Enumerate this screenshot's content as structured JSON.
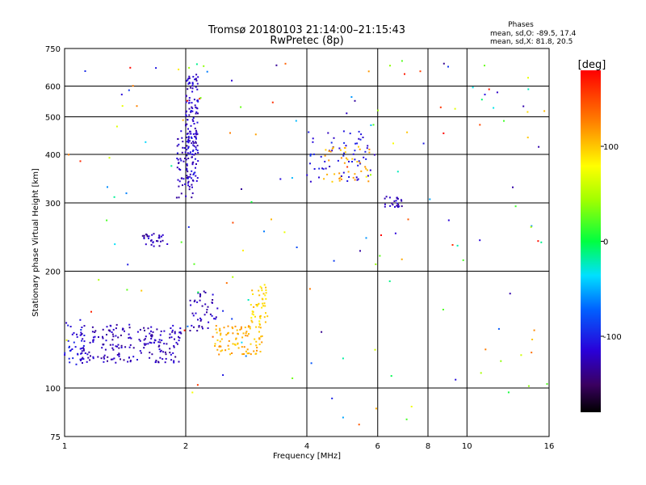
{
  "chart_data": {
    "type": "scatter",
    "title": "Tromsø 20180103 21:14:00–21:15:43",
    "subtitle": "RwPretec (8p)",
    "xlabel": "Frequency [MHz]",
    "ylabel": "Stationary phase Virtual Height [km]",
    "x_scale": "log",
    "y_scale": "log",
    "xlim": [
      1,
      16
    ],
    "ylim": [
      75,
      750
    ],
    "x_ticks": [
      1,
      2,
      4,
      6,
      8,
      10,
      16
    ],
    "x_tick_labels": [
      "1",
      "2",
      "4",
      "6",
      "8",
      "10",
      "16"
    ],
    "y_ticks": [
      75,
      100,
      200,
      300,
      400,
      500,
      600,
      750
    ],
    "y_tick_labels": [
      "75",
      "100",
      "200",
      "300",
      "400",
      "500",
      "600",
      "750"
    ],
    "grid": true,
    "phases_box": {
      "title": "Phases",
      "line1": "mean, sd,O: -89.5, 17.4",
      "line2": "mean, sd,X:  81.8, 20.5"
    },
    "colorbar": {
      "label": "[deg]",
      "range": [
        -180,
        180
      ],
      "ticks": [
        -100,
        0,
        100
      ],
      "tick_labels": [
        "-100",
        "0",
        "100"
      ]
    },
    "clusters": [
      {
        "x": [
          1.0,
          1.12
        ],
        "y": [
          112,
          150
        ],
        "phase": -108,
        "n": 40
      },
      {
        "x": [
          1.1,
          1.95
        ],
        "y": [
          116,
          146
        ],
        "phase": -125,
        "n": 200
      },
      {
        "x": [
          1.9,
          2.1
        ],
        "y": [
          308,
          460
        ],
        "phase": -120,
        "n": 60
      },
      {
        "x": [
          2.0,
          2.15
        ],
        "y": [
          340,
          650
        ],
        "phase": -118,
        "n": 140
      },
      {
        "x": [
          1.55,
          1.8
        ],
        "y": [
          232,
          250
        ],
        "phase": -125,
        "n": 30
      },
      {
        "x": [
          2.05,
          2.4
        ],
        "y": [
          140,
          178
        ],
        "phase": -125,
        "n": 45
      },
      {
        "x": [
          2.35,
          3.1
        ],
        "y": [
          122,
          145
        ],
        "phase": 110,
        "n": 90
      },
      {
        "x": [
          2.9,
          3.2
        ],
        "y": [
          145,
          185
        ],
        "phase": 95,
        "n": 45
      },
      {
        "x": [
          4.0,
          5.9
        ],
        "y": [
          340,
          460
        ],
        "phase": -110,
        "n": 60
      },
      {
        "x": [
          4.4,
          5.8
        ],
        "y": [
          340,
          420
        ],
        "phase": 110,
        "n": 40
      },
      {
        "x": [
          6.2,
          6.9
        ],
        "y": [
          292,
          312
        ],
        "phase": -125,
        "n": 25
      },
      {
        "x": [
          1.0,
          16.0
        ],
        "y": [
          80,
          720
        ],
        "phase": 0,
        "n": 160,
        "spread": true
      }
    ]
  }
}
